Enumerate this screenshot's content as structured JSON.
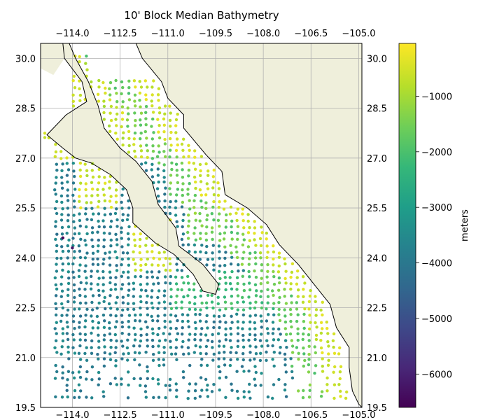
{
  "chart_data": {
    "type": "scatter",
    "title": "10' Block Median Bathymetry",
    "xlim": [
      -115.0,
      -104.9
    ],
    "ylim": [
      19.5,
      30.45
    ],
    "x_ticks": [
      "-114.0",
      "-112.5",
      "-111.0",
      "-109.5",
      "-108.0",
      "-106.5",
      "-105.0"
    ],
    "y_ticks": [
      "19.5",
      "21.0",
      "22.5",
      "24.0",
      "25.5",
      "27.0",
      "28.5",
      "30.0"
    ],
    "x_tick_values": [
      -114.0,
      -112.5,
      -111.0,
      -109.5,
      -108.0,
      -106.5,
      -105.0
    ],
    "y_tick_values": [
      19.5,
      21.0,
      22.5,
      24.0,
      25.5,
      27.0,
      28.5,
      30.0
    ],
    "grid": true,
    "colorbar": {
      "label": "meters",
      "range": [
        -6600,
        -50
      ],
      "ticks": [
        "−1000",
        "−2000",
        "−3000",
        "−4000",
        "−5000",
        "−6000"
      ],
      "tick_values": [
        -1000,
        -2000,
        -3000,
        -4000,
        -5000,
        -6000
      ],
      "colormap": "viridis"
    },
    "land_color": "#efefdb",
    "coastline_color": "#000000",
    "coastline": [
      [
        -114.3,
        30.45
      ],
      [
        -114.25,
        30.0
      ],
      [
        -113.7,
        29.3
      ],
      [
        -113.55,
        28.7
      ],
      [
        -114.2,
        28.3
      ],
      [
        -114.8,
        27.7
      ],
      [
        -114.3,
        27.3
      ],
      [
        -113.9,
        27.0
      ],
      [
        -113.4,
        26.85
      ],
      [
        -112.8,
        26.5
      ],
      [
        -112.3,
        26.05
      ],
      [
        -112.1,
        25.5
      ],
      [
        -112.1,
        25.05
      ],
      [
        -111.4,
        24.45
      ],
      [
        -110.8,
        24.1
      ],
      [
        -110.2,
        23.5
      ],
      [
        -109.9,
        23.0
      ],
      [
        -109.5,
        22.9
      ],
      [
        -109.4,
        23.2
      ],
      [
        -109.9,
        23.8
      ],
      [
        -110.3,
        24.1
      ],
      [
        -110.65,
        24.35
      ],
      [
        -110.75,
        24.9
      ],
      [
        -111.3,
        25.6
      ],
      [
        -111.5,
        26.3
      ],
      [
        -112.0,
        26.9
      ],
      [
        -112.5,
        27.3
      ],
      [
        -113.0,
        27.9
      ],
      [
        -113.2,
        28.6
      ],
      [
        -113.5,
        29.3
      ],
      [
        -113.9,
        30.0
      ],
      [
        -114.1,
        30.45
      ]
    ],
    "coastline_mainland": [
      [
        -112.0,
        30.45
      ],
      [
        -111.8,
        30.0
      ],
      [
        -111.2,
        29.3
      ],
      [
        -111.0,
        28.8
      ],
      [
        -110.5,
        28.3
      ],
      [
        -110.5,
        27.9
      ],
      [
        -109.8,
        27.1
      ],
      [
        -109.3,
        26.6
      ],
      [
        -109.2,
        25.9
      ],
      [
        -108.5,
        25.5
      ],
      [
        -107.9,
        25.0
      ],
      [
        -107.5,
        24.4
      ],
      [
        -106.9,
        23.8
      ],
      [
        -106.4,
        23.2
      ],
      [
        -105.9,
        22.6
      ],
      [
        -105.7,
        21.9
      ],
      [
        -105.3,
        21.3
      ],
      [
        -105.3,
        20.7
      ],
      [
        -105.2,
        20.0
      ],
      [
        -105.0,
        19.6
      ],
      [
        -104.9,
        19.5
      ]
    ],
    "mainland_land_polygon_close": [
      [
        -104.9,
        30.45
      ]
    ]
  }
}
